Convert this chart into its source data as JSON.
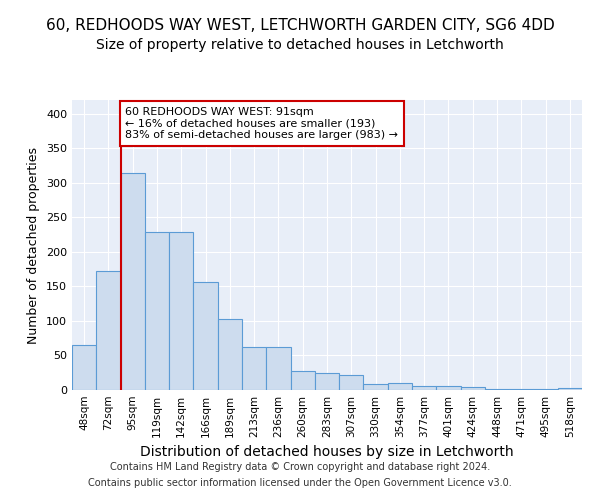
{
  "title1": "60, REDHOODS WAY WEST, LETCHWORTH GARDEN CITY, SG6 4DD",
  "title2": "Size of property relative to detached houses in Letchworth",
  "xlabel": "Distribution of detached houses by size in Letchworth",
  "ylabel": "Number of detached properties",
  "bar_values": [
    65,
    172,
    315,
    229,
    229,
    157,
    103,
    62,
    62,
    27,
    25,
    22,
    9,
    10,
    6,
    6,
    5,
    2,
    1,
    1,
    3
  ],
  "bin_labels": [
    "48sqm",
    "72sqm",
    "95sqm",
    "119sqm",
    "142sqm",
    "166sqm",
    "189sqm",
    "213sqm",
    "236sqm",
    "260sqm",
    "283sqm",
    "307sqm",
    "330sqm",
    "354sqm",
    "377sqm",
    "401sqm",
    "424sqm",
    "448sqm",
    "471sqm",
    "495sqm",
    "518sqm"
  ],
  "bar_color": "#cddcee",
  "bar_edge_color": "#5b9bd5",
  "vline_x_index": 2,
  "vline_color": "#cc0000",
  "annotation_text": "60 REDHOODS WAY WEST: 91sqm\n← 16% of detached houses are smaller (193)\n83% of semi-detached houses are larger (983) →",
  "annotation_box_color": "white",
  "annotation_box_edge_color": "#cc0000",
  "footer1": "Contains HM Land Registry data © Crown copyright and database right 2024.",
  "footer2": "Contains public sector information licensed under the Open Government Licence v3.0.",
  "ylim": [
    0,
    420
  ],
  "background_color": "#e8eef8",
  "title1_fontsize": 11,
  "title2_fontsize": 10,
  "ylabel_fontsize": 9,
  "xlabel_fontsize": 10
}
